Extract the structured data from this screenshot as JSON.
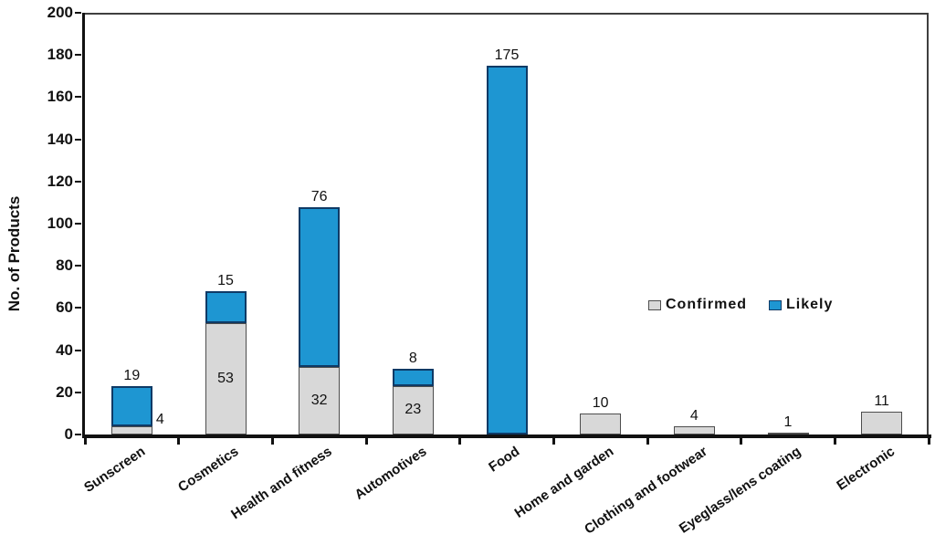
{
  "chart_data": {
    "type": "bar",
    "stacked": true,
    "title": "",
    "ylabel": "No. of Products",
    "xlabel": "",
    "ylim": [
      0,
      200
    ],
    "ytick_step": 20,
    "grid": false,
    "categories": [
      "Sunscreen",
      "Cosmetics",
      "Health and fitness",
      "Automotives",
      "Food",
      "Home and garden",
      "Clothing and footwear",
      "Eyeglass/lens coating",
      "Electronic"
    ],
    "series": [
      {
        "name": "Confirmed",
        "color": "#d8d8d8",
        "border_color": "#4d4d4d",
        "values": [
          4,
          53,
          32,
          23,
          0,
          10,
          4,
          1,
          11
        ],
        "label_positions": [
          "right",
          "inside",
          "inside",
          "inside",
          null,
          "above",
          "above",
          "above",
          "above"
        ]
      },
      {
        "name": "Likely",
        "color": "#1e96d2",
        "border_color": "#0f3a66",
        "values": [
          19,
          15,
          76,
          8,
          175,
          0,
          0,
          0,
          0
        ],
        "label_positions": [
          "above",
          "above",
          "above",
          "above",
          "above",
          null,
          null,
          null,
          null
        ]
      }
    ],
    "bar_totals": [
      23,
      68,
      108,
      31,
      175,
      10,
      4,
      1,
      11
    ],
    "legend": {
      "entries": [
        "Confirmed",
        "Likely"
      ],
      "position": "center-right"
    }
  },
  "colors": {
    "background": "#ffffff",
    "axis": "#111111",
    "plot_border": "#3f3f3f",
    "text": "#111111"
  }
}
